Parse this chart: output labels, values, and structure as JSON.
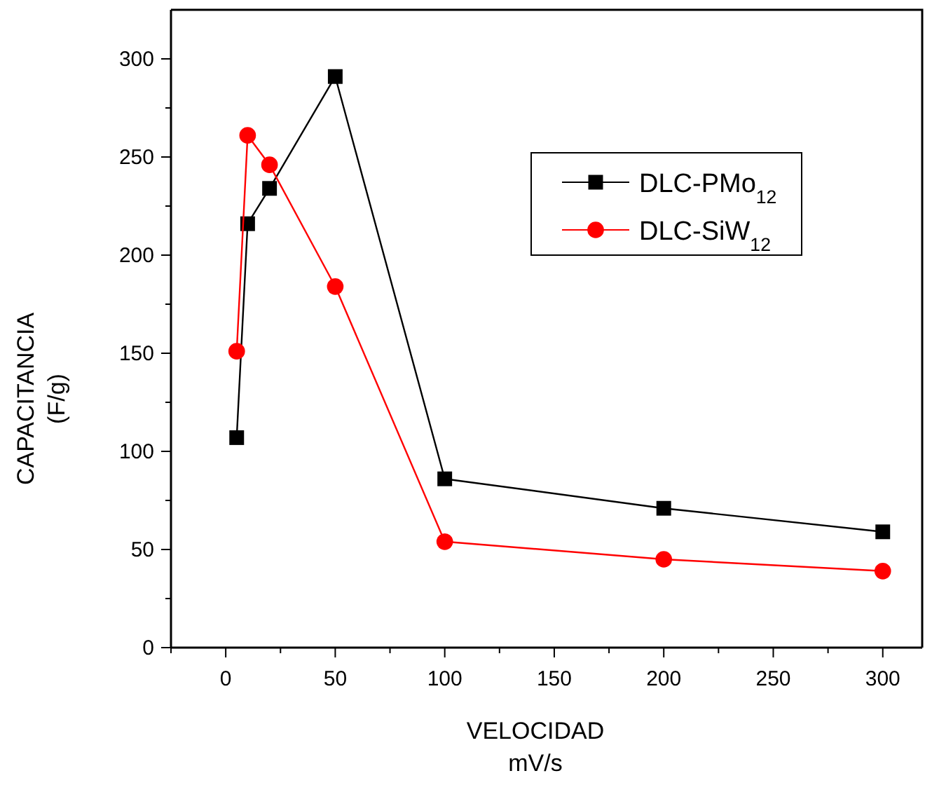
{
  "chart_data": {
    "type": "line",
    "xlabel": "VELOCIDAD\nmV/s",
    "ylabel": "CAPACITANCIA\n(F/g)",
    "x": [
      5,
      10,
      20,
      50,
      100,
      200,
      300
    ],
    "series": [
      {
        "name": "DLC-PMo$_{12}$",
        "color": "#000000",
        "marker": "square",
        "values": [
          107,
          216,
          234,
          291,
          86,
          71,
          59
        ]
      },
      {
        "name": "DLC-SiW$_{12}$",
        "color": "#ff0000",
        "marker": "circle",
        "values": [
          151,
          261,
          246,
          184,
          54,
          45,
          39
        ]
      }
    ],
    "xlim": [
      -25,
      318
    ],
    "ylim": [
      0,
      325
    ],
    "xticks": [
      {
        "value": -25,
        "label": null
      },
      0,
      {
        "value": 25,
        "label": null
      },
      50,
      {
        "value": 75,
        "label": null
      },
      100,
      {
        "value": 125,
        "label": null
      },
      150,
      {
        "value": 175,
        "label": null
      },
      200,
      {
        "value": 225,
        "label": null
      },
      250,
      {
        "value": 275,
        "label": null
      },
      300
    ],
    "yticks": [
      0,
      {
        "value": 25,
        "label": null
      },
      50,
      {
        "value": 75,
        "label": null
      },
      100,
      {
        "value": 125,
        "label": null
      },
      150,
      {
        "value": 175,
        "label": null
      },
      200,
      {
        "value": 225,
        "label": null
      },
      250,
      {
        "value": 275,
        "label": null
      },
      300
    ],
    "grid": false,
    "legend": "top right",
    "line_style": "solid"
  }
}
